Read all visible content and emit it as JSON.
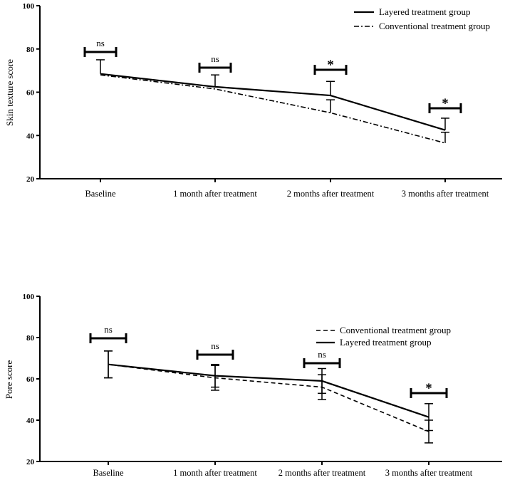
{
  "chart_data": [
    {
      "type": "line",
      "title": "",
      "ylabel": "Skin texture score",
      "xlabel": "",
      "ylim": [
        20,
        100
      ],
      "yticks": [
        20,
        40,
        60,
        80,
        100
      ],
      "categories": [
        "Baseline",
        "1 month after treatment",
        "2 months after treatment",
        "3 months after treatment"
      ],
      "series": [
        {
          "name": "Layered treatment group",
          "style": "solid",
          "values": [
            68.5,
            62.5,
            58.5,
            42.5
          ],
          "error": [
            6.5,
            5.5,
            6.5,
            5.5
          ]
        },
        {
          "name": "Conventional treatment group",
          "style": "dash-dot",
          "values": [
            68,
            61.5,
            50.5,
            36.5
          ],
          "error": [
            0,
            0,
            6,
            5
          ]
        }
      ],
      "significance": [
        "ns",
        "ns",
        "*",
        "*"
      ],
      "legend_position": "top-right"
    },
    {
      "type": "line",
      "title": "",
      "ylabel": "Pore score",
      "xlabel": "",
      "ylim": [
        20,
        100
      ],
      "yticks": [
        20,
        40,
        60,
        80,
        100
      ],
      "categories": [
        "Baseline",
        "1 month after treatment",
        "2 months after treatment",
        "3 months after treatment"
      ],
      "series": [
        {
          "name": "Conventional treatment group",
          "style": "dashed",
          "values": [
            67,
            60.5,
            56,
            34.5
          ],
          "error": [
            6.5,
            6,
            6,
            5.5
          ]
        },
        {
          "name": "Layered treatment group",
          "style": "solid",
          "values": [
            67,
            61.5,
            59,
            41.5
          ],
          "error": [
            6.5,
            5.5,
            6,
            6.5
          ]
        }
      ],
      "significance": [
        "ns",
        "ns",
        "ns",
        "*"
      ],
      "legend_position": "right"
    }
  ]
}
